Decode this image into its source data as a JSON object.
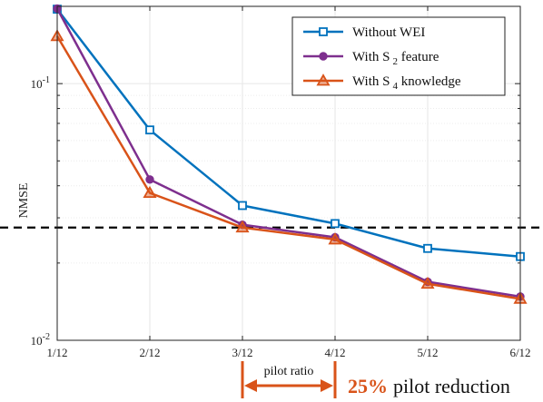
{
  "chart_data": {
    "type": "line",
    "xlabel": "",
    "ylabel": "NMSE",
    "yscale": "log",
    "ylim": [
      0.01,
      0.2
    ],
    "grid": true,
    "legend_position": "top-right",
    "categories": [
      "1/12",
      "2/12",
      "3/12",
      "4/12",
      "5/12",
      "6/12"
    ],
    "y_ticks": [
      {
        "value": 0.1,
        "base": "10",
        "exp": "-1"
      },
      {
        "value": 0.01,
        "base": "10",
        "exp": "-2"
      }
    ],
    "threshold": 0.0275,
    "series": [
      {
        "name": "Without WEI",
        "sub": "",
        "suffix": "",
        "color": "#0072bd",
        "marker": "square",
        "values": [
          0.195,
          0.066,
          0.0335,
          0.0285,
          0.0228,
          0.0212
        ]
      },
      {
        "name": "With S",
        "sub": "2",
        "suffix": " feature",
        "color": "#7e2f8e",
        "marker": "circle",
        "values": [
          0.196,
          0.0423,
          0.0282,
          0.0252,
          0.0169,
          0.0148
        ]
      },
      {
        "name": "With S",
        "sub": "4",
        "suffix": " knowledge",
        "color": "#d95319",
        "marker": "triangle",
        "values": [
          0.153,
          0.0375,
          0.0275,
          0.0247,
          0.0166,
          0.0145
        ]
      }
    ]
  },
  "annotation": {
    "bracket_label": "pilot ratio",
    "from_category": "3/12",
    "to_category": "4/12",
    "reduction_percent": "25%",
    "reduction_text": "pilot reduction",
    "color": "#d95319"
  }
}
